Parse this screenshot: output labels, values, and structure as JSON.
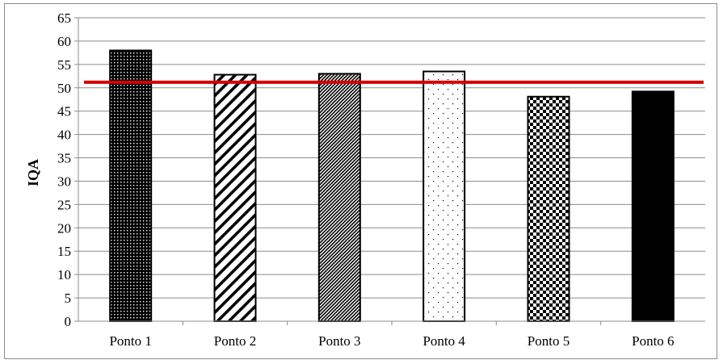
{
  "chart_data": {
    "type": "bar",
    "title": "",
    "xlabel": "",
    "ylabel": "IQA",
    "categories": [
      "Ponto 1",
      "Ponto 2",
      "Ponto 3",
      "Ponto 4",
      "Ponto 5",
      "Ponto 6"
    ],
    "values": [
      58,
      52.8,
      53,
      53.5,
      48.1,
      49.2
    ],
    "bar_patterns": [
      "dense-crosshatch",
      "wide-diagonal-stripes",
      "fine-diagonal-stripes",
      "sparse-dots",
      "checkerboard",
      "solid"
    ],
    "ylim": [
      0,
      65
    ],
    "yticks": [
      "0",
      "5",
      "10",
      "15",
      "20",
      "25",
      "30",
      "35",
      "40",
      "45",
      "50",
      "55",
      "60",
      "65"
    ],
    "grid": true,
    "reference_line": {
      "value": 51.2,
      "color": "#d40000"
    },
    "bar_color": "#000000"
  }
}
